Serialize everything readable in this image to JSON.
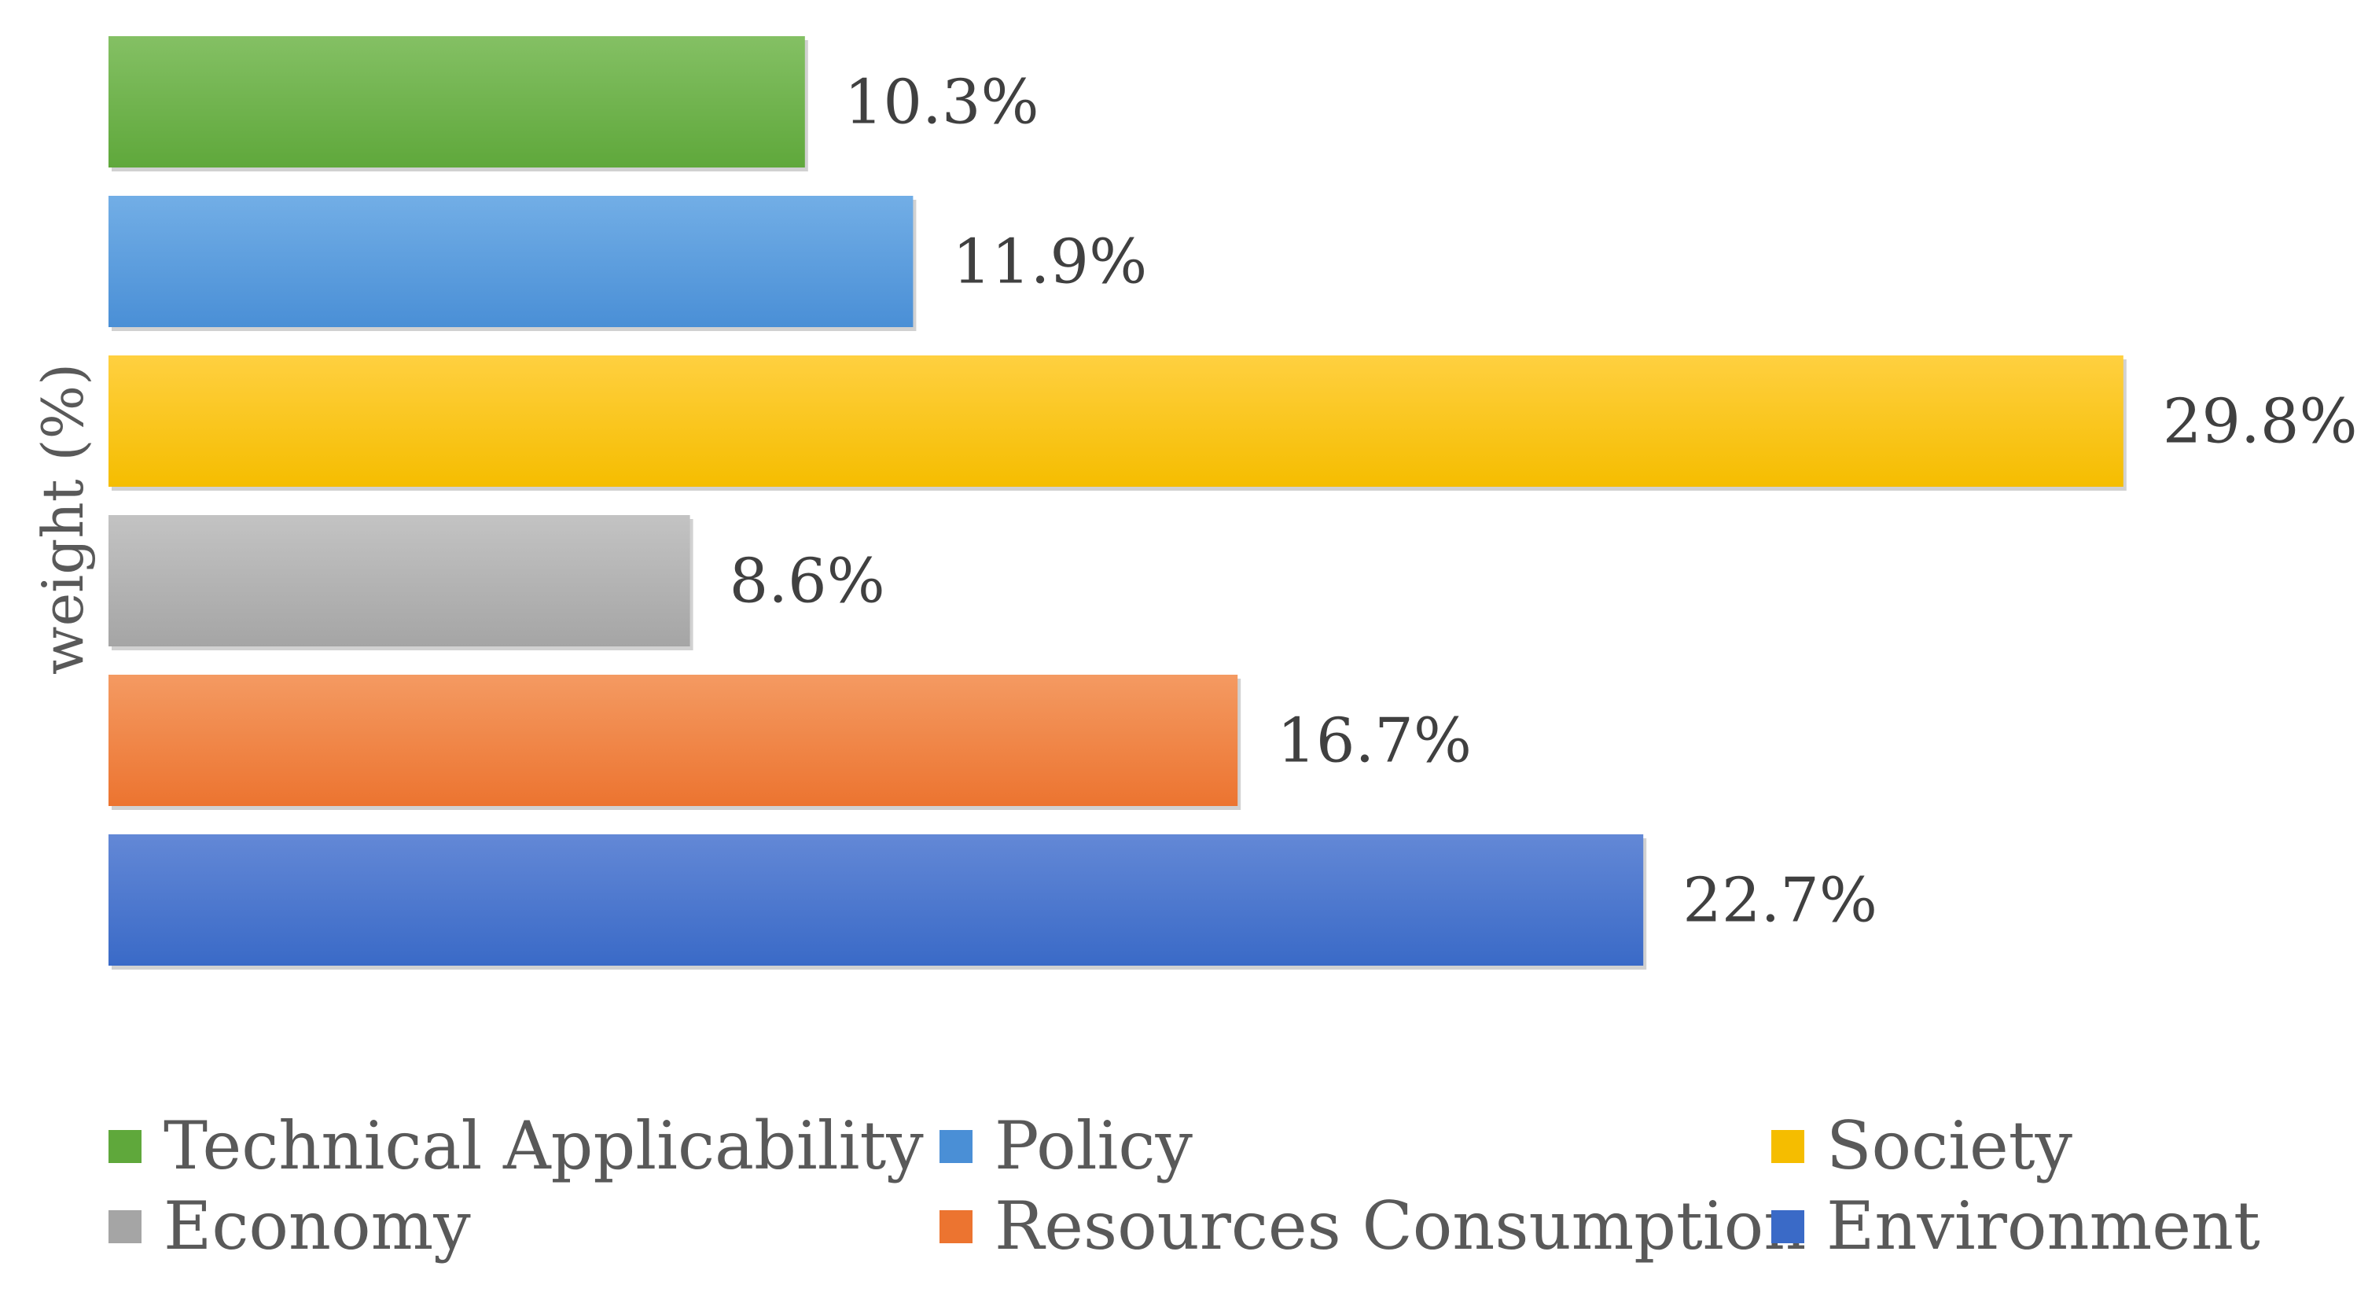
{
  "chart_data": {
    "type": "bar",
    "orientation": "horizontal",
    "title": "",
    "xlabel": "",
    "ylabel": "weight (%)",
    "xlim": [
      0,
      30
    ],
    "grid": false,
    "legend_position": "bottom",
    "categories": [
      "Technical Applicability",
      "Policy",
      "Society",
      "Economy",
      "Resources Consumption",
      "Environment"
    ],
    "values": [
      10.3,
      11.9,
      29.8,
      8.6,
      16.7,
      22.7
    ],
    "value_labels": [
      "10.3%",
      "11.9%",
      "29.8%",
      "8.6%",
      "16.7%",
      "22.7%"
    ],
    "colors": [
      "#5fa83b",
      "#4a8fd6",
      "#f5bd00",
      "#a5a5a5",
      "#ec7430",
      "#3a6ac7"
    ],
    "colors_light": [
      "#84c064",
      "#72aee6",
      "#ffd040",
      "#c3c3c3",
      "#f49a62",
      "#6388d6"
    ],
    "legend": [
      {
        "label": "Technical Applicability",
        "color": "#5fa83b"
      },
      {
        "label": "Policy",
        "color": "#4a8fd6"
      },
      {
        "label": "Society",
        "color": "#f5bd00"
      },
      {
        "label": "Economy",
        "color": "#a5a5a5"
      },
      {
        "label": "Resources Consumption",
        "color": "#ec7430"
      },
      {
        "label": "Environment",
        "color": "#3a6ac7"
      }
    ]
  }
}
